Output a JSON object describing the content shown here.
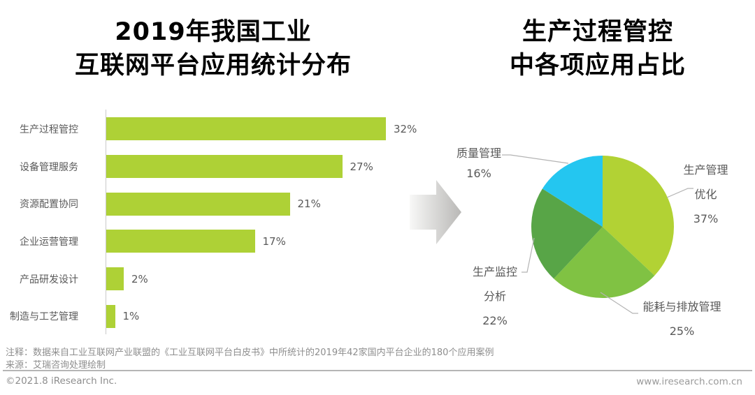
{
  "chart_data": [
    {
      "type": "bar",
      "title": "2019年我国工业互联网平台应用统计分布",
      "title_lines": [
        "2019年我国工业",
        "互联网平台应用统计分布"
      ],
      "orientation": "horizontal",
      "categories": [
        "生产过程管控",
        "设备管理服务",
        "资源配置协同",
        "企业运营管理",
        "产品研发设计",
        "制造与工艺管理"
      ],
      "values": [
        32,
        27,
        21,
        17,
        2,
        1
      ],
      "value_labels": [
        "32%",
        "27%",
        "21%",
        "17%",
        "2%",
        "1%"
      ],
      "unit": "%",
      "xlim": [
        0,
        32
      ],
      "grid": false,
      "bar_color": "#aed136"
    },
    {
      "type": "pie",
      "title": "生产过程管控中各项应用占比",
      "title_lines": [
        "生产过程管控",
        "中各项应用占比"
      ],
      "start_angle": "12 o'clock",
      "direction": "clockwise",
      "slices": [
        {
          "name": "生产管理优化",
          "value": 37,
          "color": "#b2d234",
          "label_lines": [
            "生产管理",
            "优化",
            "37%"
          ]
        },
        {
          "name": "能耗与排放管理",
          "value": 25,
          "color": "#80c243",
          "label_lines": [
            "能耗与排放管理",
            "25%"
          ]
        },
        {
          "name": "生产监控分析",
          "value": 22,
          "color": "#58a547",
          "label_lines": [
            "生产监控",
            "分析",
            "22%"
          ]
        },
        {
          "name": "质量管理",
          "value": 16,
          "color": "#24c6f0",
          "label_lines": [
            "质量管理",
            "16%"
          ]
        }
      ]
    }
  ],
  "icons": {
    "flow_arrow": "right-arrow"
  },
  "colors": {
    "bar_green": "#aed136",
    "pie_yellow_green": "#b2d234",
    "pie_green": "#80c243",
    "pie_dark_green": "#58a547",
    "pie_cyan": "#24c6f0",
    "label_gray": "#595959",
    "footnote_gray": "#8e8e8e"
  },
  "footer": {
    "note": "注释：数据来自工业互联网产业联盟的《工业互联网平台白皮书》中所统计的2019年42家国内平台企业的180个应用案例",
    "source": "来源：艾瑞咨询处理绘制",
    "copyright": "©2021.8 iResearch Inc.",
    "website": "www.iresearch.com.cn"
  }
}
